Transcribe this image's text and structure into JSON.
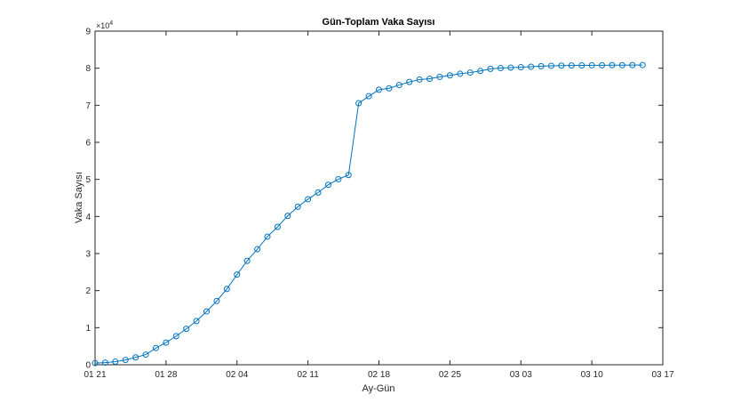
{
  "chart_data": {
    "type": "line",
    "title": "Gün-Toplam Vaka Sayısı",
    "xlabel": "Ay-Gün",
    "ylabel": "Vaka Sayısı",
    "y_exponent_label": "×10^4",
    "ylim": [
      0,
      90000
    ],
    "yticks": [
      0,
      1,
      2,
      3,
      4,
      5,
      6,
      7,
      8,
      9
    ],
    "xticks": [
      "01 21",
      "01 28",
      "02 04",
      "02 11",
      "02 18",
      "02 25",
      "03 03",
      "03 10",
      "03 17"
    ],
    "grid": false,
    "marker": "circle",
    "line_color": "#0072BD",
    "x_start": "01 21",
    "x_days": 56,
    "x": [
      0,
      1,
      2,
      3,
      4,
      5,
      6,
      7,
      8,
      9,
      10,
      11,
      12,
      13,
      14,
      15,
      16,
      17,
      18,
      19,
      20,
      21,
      22,
      23,
      24,
      25,
      26,
      27,
      28,
      29,
      30,
      31,
      32,
      33,
      34,
      35,
      36,
      37,
      38,
      39,
      40,
      41,
      42,
      43,
      44,
      45,
      46,
      47,
      48,
      49,
      50,
      51,
      52,
      53,
      54
    ],
    "values": [
      440,
      571,
      830,
      1287,
      1975,
      2744,
      4515,
      5974,
      7711,
      9692,
      11791,
      14380,
      17205,
      20438,
      24324,
      28018,
      31161,
      34546,
      37198,
      40171,
      42638,
      44653,
      46472,
      48548,
      50054,
      51174,
      70548,
      72436,
      74185,
      74576,
      75465,
      76288,
      76936,
      77150,
      77658,
      78064,
      78497,
      78824,
      79251,
      79824,
      80026,
      80151,
      80270,
      80409,
      80552,
      80651,
      80695,
      80735,
      80754,
      80778,
      80793,
      80813,
      80824,
      80844,
      80860
    ]
  },
  "title": "Gün-Toplam Vaka Sayısı",
  "xlabel": "Ay-Gün",
  "ylabel": "Vaka Sayısı",
  "exponent": {
    "base": "×10",
    "power": "4"
  }
}
